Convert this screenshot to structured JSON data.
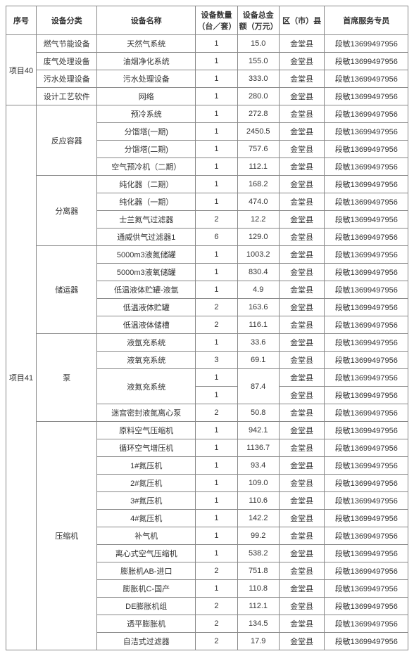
{
  "headers": [
    "序号",
    "设备分类",
    "设备名称",
    "设备数量（台／套）",
    "设备总金额（万元）",
    "区（市）县",
    "首席服务专员"
  ],
  "contact": "段敏13699497956",
  "county": "金堂县",
  "proj40": {
    "label": "项目40",
    "rows": [
      {
        "cat": "燃气节能设备",
        "name": "天然气系统",
        "qty": "1",
        "amt": "15.0"
      },
      {
        "cat": "废气处理设备",
        "name": "油烟净化系统",
        "qty": "1",
        "amt": "155.0"
      },
      {
        "cat": "污水处理设备",
        "name": "污水处理设备",
        "qty": "1",
        "amt": "333.0"
      },
      {
        "cat": "设计工艺软件",
        "name": "网络",
        "qty": "1",
        "amt": "280.0"
      }
    ]
  },
  "proj41": {
    "label": "项目41",
    "groups": [
      {
        "cat": "反应容器",
        "items": [
          {
            "name": "预冷系统",
            "qty": "1",
            "amt": "272.8"
          },
          {
            "name": "分馏塔(一期)",
            "qty": "1",
            "amt": "2450.5"
          },
          {
            "name": "分馏塔(二期)",
            "qty": "1",
            "amt": "757.6"
          },
          {
            "name": "空气预冷机（二期）",
            "qty": "1",
            "amt": "112.1"
          }
        ]
      },
      {
        "cat": "分离器",
        "items": [
          {
            "name": "纯化器（二期）",
            "qty": "1",
            "amt": "168.2"
          },
          {
            "name": "纯化器（一期）",
            "qty": "1",
            "amt": "474.0"
          },
          {
            "name": "士兰氮气过滤器",
            "qty": "2",
            "amt": "12.2"
          },
          {
            "name": "通威供气过滤器1",
            "qty": "6",
            "amt": "129.0"
          }
        ]
      },
      {
        "cat": "储运器",
        "items": [
          {
            "name": "5000m3液氮储罐",
            "qty": "1",
            "amt": "1003.2"
          },
          {
            "name": "5000m3液氧储罐",
            "qty": "1",
            "amt": "830.4"
          },
          {
            "name": "低温液体贮罐-液氩",
            "qty": "1",
            "amt": "4.9"
          },
          {
            "name": "低温液体贮罐",
            "qty": "2",
            "amt": "163.6"
          },
          {
            "name": "低温液体储槽",
            "qty": "2",
            "amt": "116.1"
          }
        ]
      },
      {
        "cat": "泵",
        "items": [
          {
            "name": "液氩充系统",
            "qty": "1",
            "amt": "33.6"
          },
          {
            "name": "液氧充系统",
            "qty": "3",
            "amt": "69.1"
          },
          {
            "name": "液氮充系统",
            "qty": "1",
            "amt": "87.4",
            "mergeAmt": true,
            "extraQty": "1"
          },
          {
            "name": "迷宫密封液氮离心泵",
            "qty": "2",
            "amt": "50.8"
          }
        ]
      },
      {
        "cat": "压缩机",
        "items": [
          {
            "name": "原料空气压缩机",
            "qty": "1",
            "amt": "942.1"
          },
          {
            "name": "循环空气增压机",
            "qty": "1",
            "amt": "1136.7"
          },
          {
            "name": "1#氮压机",
            "qty": "1",
            "amt": "93.4"
          },
          {
            "name": "2#氮压机",
            "qty": "1",
            "amt": "109.0"
          },
          {
            "name": "3#氮压机",
            "qty": "1",
            "amt": "110.6"
          },
          {
            "name": "4#氮压机",
            "qty": "1",
            "amt": "142.2"
          },
          {
            "name": "补气机",
            "qty": "1",
            "amt": "99.2"
          },
          {
            "name": "离心式空气压缩机",
            "qty": "1",
            "amt": "538.2"
          },
          {
            "name": "膨胀机AB-进口",
            "qty": "2",
            "amt": "751.8"
          },
          {
            "name": "膨胀机C-国产",
            "qty": "1",
            "amt": "110.8"
          },
          {
            "name": "DE膨胀机组",
            "qty": "2",
            "amt": "112.1"
          },
          {
            "name": "透平膨胀机",
            "qty": "2",
            "amt": "134.5"
          },
          {
            "name": "自洁式过滤器",
            "qty": "2",
            "amt": "17.9"
          }
        ]
      }
    ]
  }
}
